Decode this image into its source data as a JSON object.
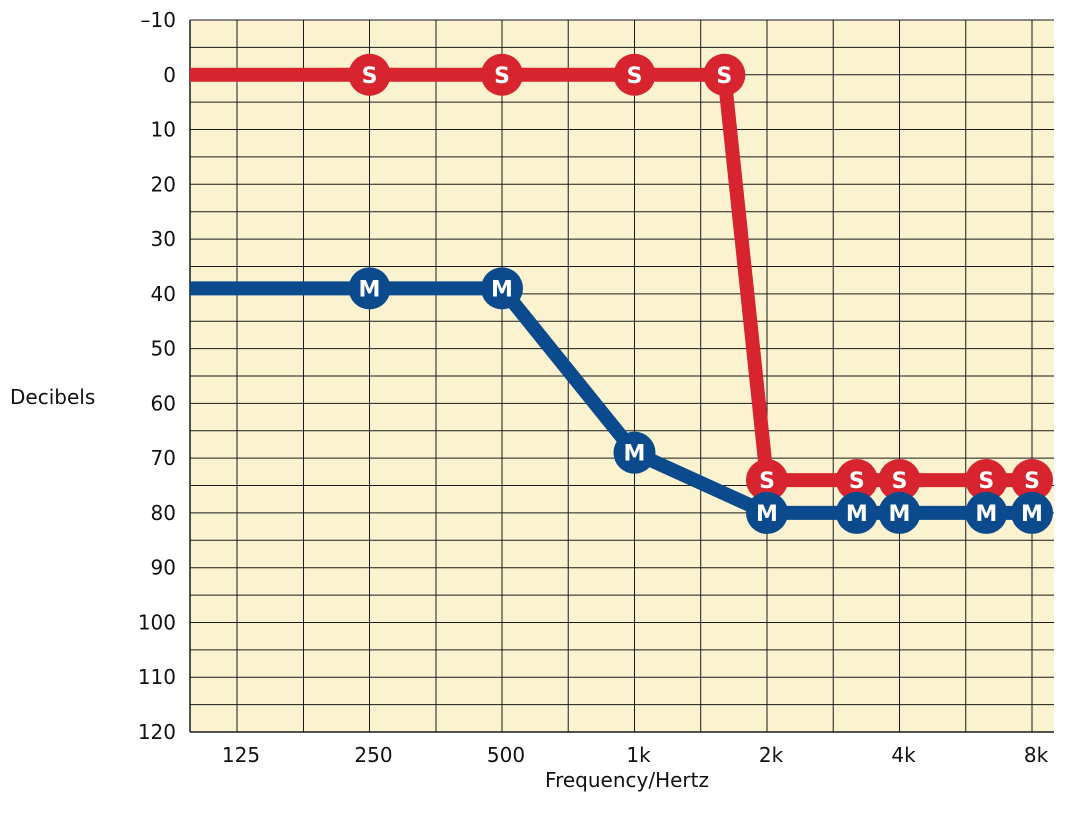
{
  "chart_data": {
    "type": "line",
    "xlabel": "Frequency/Hertz",
    "ylabel": "Decibels",
    "x_scale": "log2",
    "x_ticks": [
      {
        "value": 125,
        "label": "125"
      },
      {
        "value": 250,
        "label": "250"
      },
      {
        "value": 500,
        "label": "500"
      },
      {
        "value": 1000,
        "label": "1k"
      },
      {
        "value": 2000,
        "label": "2k"
      },
      {
        "value": 4000,
        "label": "4k"
      },
      {
        "value": 8000,
        "label": "8k"
      }
    ],
    "y_ticks": [
      {
        "value": -10,
        "label": "–10"
      },
      {
        "value": 0,
        "label": "0"
      },
      {
        "value": 10,
        "label": "10"
      },
      {
        "value": 20,
        "label": "20"
      },
      {
        "value": 30,
        "label": "30"
      },
      {
        "value": 40,
        "label": "40"
      },
      {
        "value": 50,
        "label": "50"
      },
      {
        "value": 60,
        "label": "60"
      },
      {
        "value": 70,
        "label": "70"
      },
      {
        "value": 80,
        "label": "80"
      },
      {
        "value": 90,
        "label": "90"
      },
      {
        "value": 100,
        "label": "100"
      },
      {
        "value": 110,
        "label": "110"
      },
      {
        "value": 120,
        "label": "120"
      }
    ],
    "ylim": [
      -10,
      120
    ],
    "y_inverted": true,
    "grid": true,
    "background": "#fbf3cf",
    "series": [
      {
        "marker": "S",
        "color": "#d7242f",
        "line_start": {
          "x": 105,
          "y": 0
        },
        "points": [
          {
            "x": 250,
            "y": 0
          },
          {
            "x": 500,
            "y": 0
          },
          {
            "x": 1000,
            "y": 0
          },
          {
            "x": 1600,
            "y": 0
          },
          {
            "x": 2000,
            "y": 74
          },
          {
            "x": 3200,
            "y": 74
          },
          {
            "x": 4000,
            "y": 74
          },
          {
            "x": 6300,
            "y": 74
          },
          {
            "x": 8000,
            "y": 74
          }
        ]
      },
      {
        "marker": "M",
        "color": "#0b4a8c",
        "line_start": {
          "x": 105,
          "y": 39
        },
        "points": [
          {
            "x": 250,
            "y": 39
          },
          {
            "x": 500,
            "y": 39
          },
          {
            "x": 1000,
            "y": 69
          },
          {
            "x": 2000,
            "y": 80
          },
          {
            "x": 3200,
            "y": 80
          },
          {
            "x": 4000,
            "y": 80
          },
          {
            "x": 6300,
            "y": 80
          },
          {
            "x": 8000,
            "y": 80
          }
        ]
      }
    ]
  }
}
